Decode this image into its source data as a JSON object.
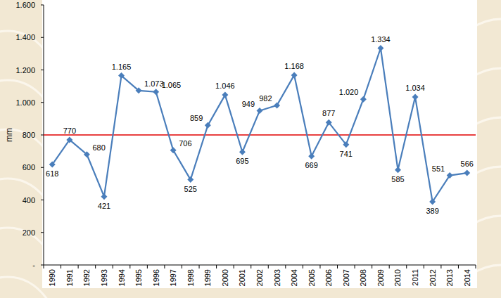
{
  "chart_data": {
    "type": "line",
    "y_label": "mm",
    "categories": [
      "1990",
      "1991",
      "1992",
      "1993",
      "1994",
      "1995",
      "1996",
      "1997",
      "1998",
      "1999",
      "2000",
      "2001",
      "2002",
      "2003",
      "2004",
      "2005",
      "2006",
      "2007",
      "2008",
      "2009",
      "2010",
      "2011",
      "2012",
      "2013",
      "2014"
    ],
    "values": [
      618,
      770,
      680,
      421,
      1165,
      1073,
      1065,
      706,
      525,
      859,
      1046,
      695,
      949,
      982,
      1168,
      669,
      877,
      741,
      1020,
      1334,
      585,
      1034,
      389,
      551,
      566
    ],
    "value_labels": [
      "618",
      "770",
      "680",
      "421",
      "1.165",
      "1.073",
      "1.065",
      "706",
      "525",
      "859",
      "1.046",
      "695",
      "949",
      "982",
      "1.168",
      "669",
      "877",
      "741",
      "1.020",
      "1.334",
      "585",
      "1.034",
      "389",
      "551",
      "566"
    ],
    "color": "#4a7ebb",
    "marker": "diamond",
    "data_labels": true,
    "grid": false,
    "ylim": [
      0,
      1600
    ],
    "yticks": [
      {
        "value": 0,
        "label": "-"
      },
      200,
      400,
      600,
      800,
      {
        "value": 1000,
        "label": "1.000"
      },
      {
        "value": 1200,
        "label": "1.200"
      },
      {
        "value": 1400,
        "label": "1.400"
      },
      {
        "value": 1600,
        "label": "1.600"
      }
    ],
    "reference_line": {
      "value": 800,
      "color": "#e00000"
    }
  }
}
